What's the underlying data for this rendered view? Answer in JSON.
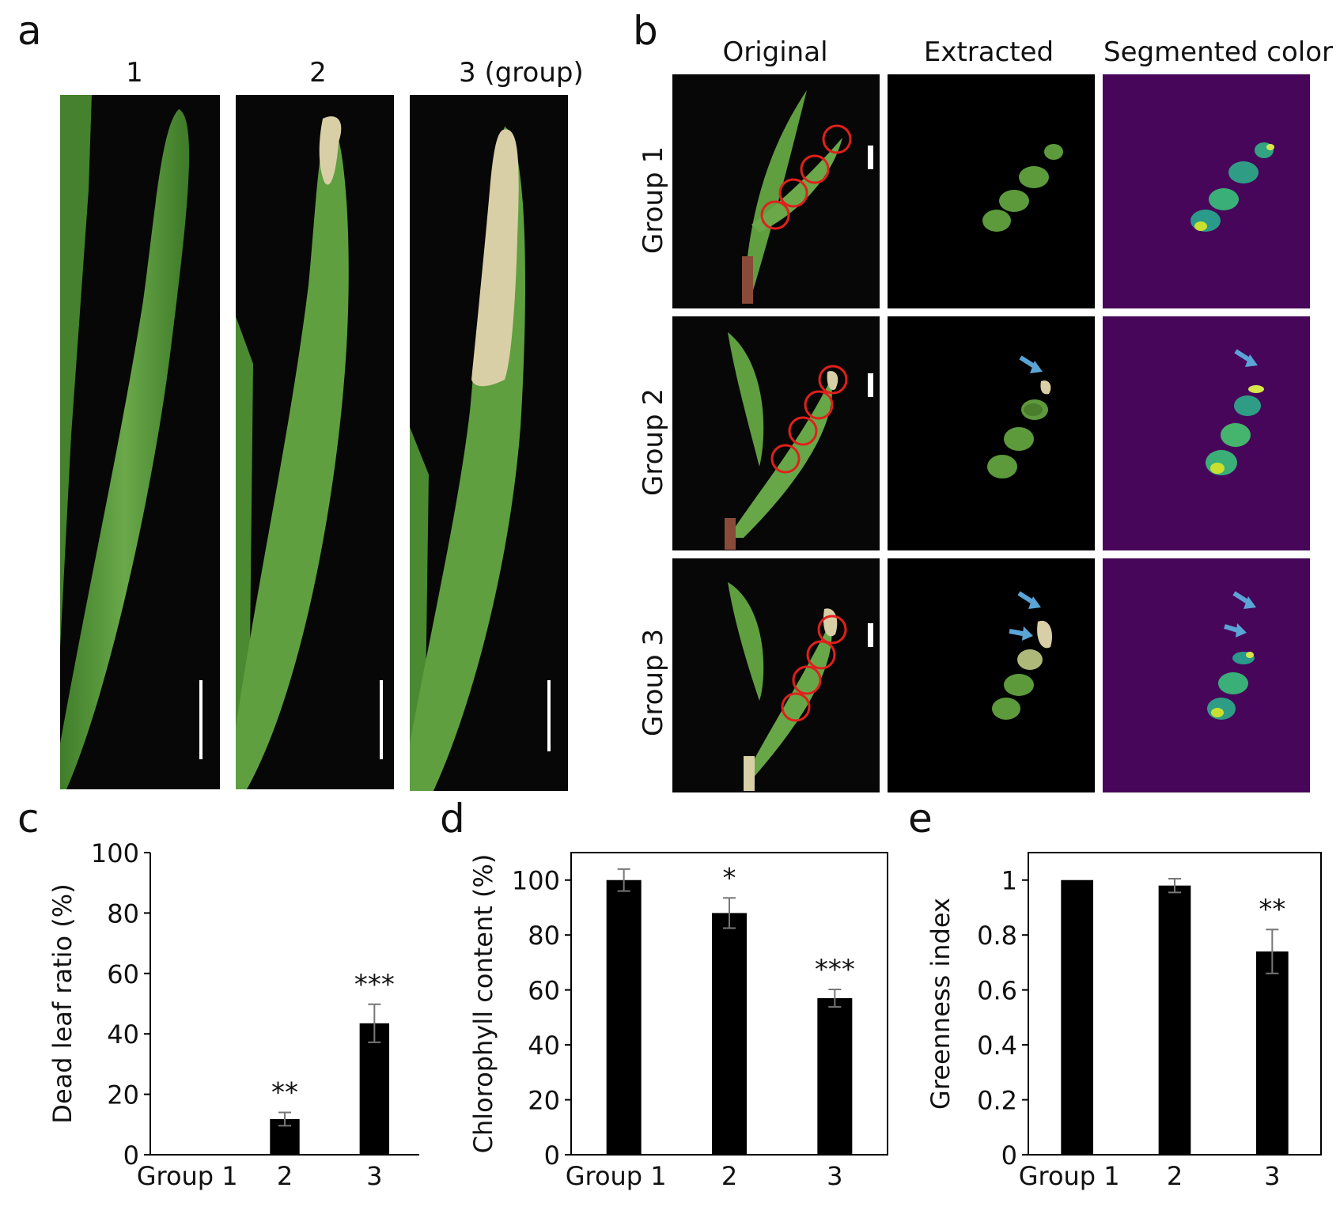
{
  "panels": {
    "a": {
      "letter": "a",
      "columns": [
        "1",
        "2",
        "3  (group)"
      ]
    },
    "b": {
      "letter": "b",
      "columns": [
        "Original",
        "Extracted",
        "Segmented color"
      ],
      "rows": [
        "Group 1",
        "Group 2",
        "Group 3"
      ]
    },
    "c": {
      "letter": "c"
    },
    "d": {
      "letter": "d"
    },
    "e": {
      "letter": "e"
    }
  },
  "colors": {
    "bar": "#000000",
    "leaf_green": "#5d9a3c",
    "dead_leaf": "#d8cfa6",
    "segment_bg": "#47065a",
    "circle": "#e0201c",
    "arrow": "#5ba4d6"
  },
  "chart_data": [
    {
      "type": "bar",
      "panel": "c",
      "categories": [
        "Group 1",
        "2",
        "3"
      ],
      "values": [
        0,
        11.8,
        43.5
      ],
      "errors": [
        0,
        2.2,
        6.3
      ],
      "significance": [
        "",
        "**",
        "***"
      ],
      "ylabel": "Dead leaf ratio (%)",
      "ylim": [
        0,
        100
      ],
      "yticks": [
        0,
        20,
        40,
        60,
        80,
        100
      ],
      "box": "left-bottom"
    },
    {
      "type": "bar",
      "panel": "d",
      "categories": [
        "Group 1",
        "2",
        "3"
      ],
      "values": [
        100,
        88,
        57
      ],
      "errors": [
        4,
        5.5,
        3.2
      ],
      "significance": [
        "",
        "*",
        "***"
      ],
      "ylabel": "Chlorophyll content (%)",
      "ylim": [
        0,
        110
      ],
      "yticks": [
        0,
        20,
        40,
        60,
        80,
        100
      ],
      "box": "full"
    },
    {
      "type": "bar",
      "panel": "e",
      "categories": [
        "Group 1",
        "2",
        "3"
      ],
      "values": [
        1.0,
        0.98,
        0.74
      ],
      "errors": [
        0,
        0.025,
        0.08
      ],
      "significance": [
        "",
        "",
        "**"
      ],
      "ylabel": "Greenness index",
      "ylim": [
        0,
        1.1
      ],
      "yticks": [
        0,
        0.2,
        0.4,
        0.6,
        0.8,
        1
      ],
      "ytick_labels": [
        "0",
        "0.2",
        "0.4",
        "0.6",
        "0.8",
        "1"
      ],
      "box": "full"
    }
  ]
}
